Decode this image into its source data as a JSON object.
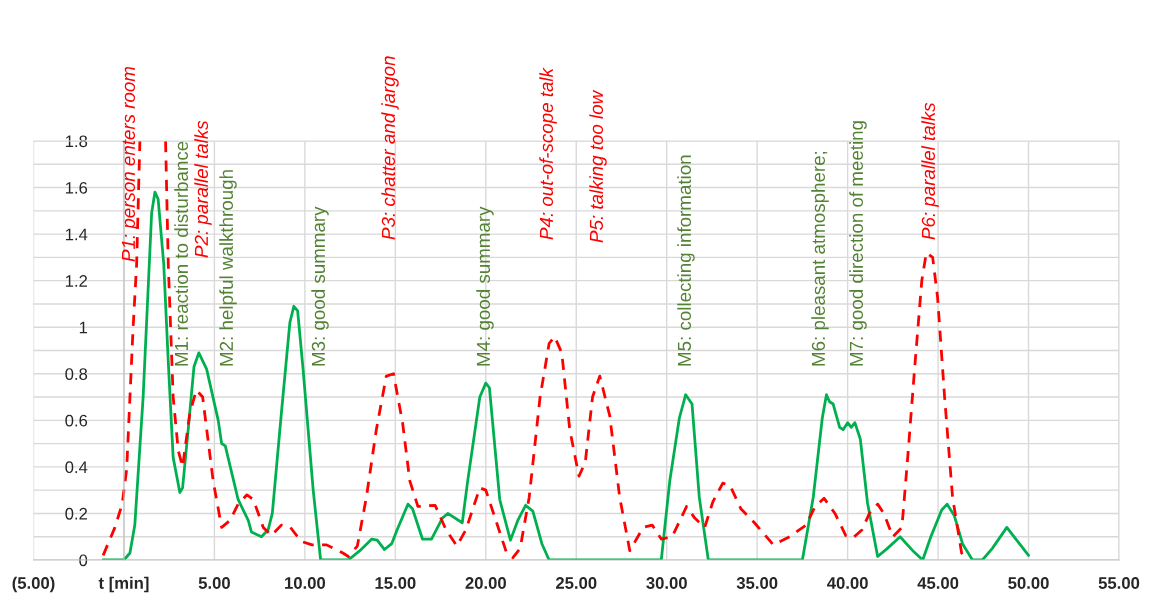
{
  "chart_data": {
    "type": "line",
    "xlim": [
      -5,
      55
    ],
    "xticks": [
      {
        "value": -5,
        "label": "(5.00)"
      },
      {
        "value": 0,
        "label": "t [min]"
      },
      {
        "value": 5,
        "label": "5.00"
      },
      {
        "value": 10,
        "label": "10.00"
      },
      {
        "value": 15,
        "label": "15.00"
      },
      {
        "value": 20,
        "label": "20.00"
      },
      {
        "value": 25,
        "label": "25.00"
      },
      {
        "value": 30,
        "label": "30.00"
      },
      {
        "value": 35,
        "label": "35.00"
      },
      {
        "value": 40,
        "label": "40.00"
      },
      {
        "value": 45,
        "label": "45.00"
      },
      {
        "value": 50,
        "label": "50.00"
      },
      {
        "value": 55,
        "label": "55.00"
      }
    ],
    "ylim": [
      0,
      1.8
    ],
    "yticks": [
      0,
      {
        "value": 0.1,
        "label": null
      },
      0.2,
      {
        "value": 0.3,
        "label": null
      },
      0.4,
      {
        "value": 0.5,
        "label": null
      },
      0.6,
      {
        "value": 0.7,
        "label": null
      },
      0.8,
      {
        "value": 0.9,
        "label": null
      },
      1,
      {
        "value": 1.1,
        "label": null
      },
      1.2,
      {
        "value": 1.3,
        "label": null
      },
      1.4,
      {
        "value": 1.5,
        "label": null
      },
      1.6,
      {
        "value": 1.7,
        "label": null
      },
      1.8
    ],
    "grid": true,
    "legend": false,
    "series": [
      {
        "color": "#00b050",
        "line_style": "solid",
        "x": [
          -1.15,
          0,
          0.33,
          0.6,
          1.06,
          1.53,
          1.71,
          1.89,
          2.2,
          2.45,
          2.72,
          3.09,
          3.24,
          3.55,
          3.87,
          4.14,
          4.57,
          5.21,
          5.4,
          5.6,
          6.31,
          6.87,
          7.05,
          7.6,
          7.97,
          8.2,
          8.7,
          9.17,
          9.39,
          9.6,
          9.9,
          10.46,
          10.87,
          12.4,
          13.04,
          13.7,
          14.0,
          14.4,
          14.8,
          15.1,
          15.7,
          15.95,
          16.5,
          17.0,
          17.6,
          17.9,
          18.7,
          19.0,
          19.67,
          20.0,
          20.2,
          20.77,
          21.36,
          21.77,
          22.2,
          22.6,
          23.1,
          23.5,
          29.7,
          30.17,
          30.7,
          31.05,
          31.4,
          31.8,
          32.3,
          37.5,
          38.1,
          38.6,
          38.83,
          39.0,
          39.2,
          39.56,
          39.75,
          40.0,
          40.2,
          40.4,
          40.7,
          41.1,
          41.66,
          42.2,
          42.9,
          43.6,
          44.15,
          44.6,
          45.2,
          45.5,
          45.9,
          46.35,
          46.9,
          47.45,
          48.0,
          48.8,
          49.3,
          50.0
        ],
        "values": [
          0,
          0,
          0.03,
          0.15,
          0.7,
          1.49,
          1.58,
          1.55,
          1.27,
          0.85,
          0.44,
          0.29,
          0.31,
          0.56,
          0.83,
          0.89,
          0.82,
          0.6,
          0.5,
          0.49,
          0.26,
          0.17,
          0.12,
          0.1,
          0.13,
          0.2,
          0.63,
          1.02,
          1.09,
          1.07,
          0.82,
          0.3,
          0,
          0,
          0.04,
          0.09,
          0.085,
          0.045,
          0.07,
          0.13,
          0.24,
          0.22,
          0.09,
          0.09,
          0.18,
          0.2,
          0.16,
          0.34,
          0.7,
          0.76,
          0.74,
          0.26,
          0.085,
          0.17,
          0.235,
          0.21,
          0.07,
          0,
          0,
          0.34,
          0.61,
          0.71,
          0.67,
          0.27,
          0,
          0,
          0.27,
          0.61,
          0.71,
          0.68,
          0.67,
          0.57,
          0.56,
          0.59,
          0.57,
          0.59,
          0.52,
          0.245,
          0.015,
          0.05,
          0.1,
          0.04,
          0,
          0.1,
          0.215,
          0.24,
          0.19,
          0.07,
          0,
          0,
          0.05,
          0.14,
          0.09,
          0.02
        ]
      },
      {
        "color": "#ff0000",
        "line_style": "dashed",
        "x": [
          -1.15,
          -0.5,
          -0.1,
          0.15,
          0.5,
          0.7,
          0.88,
          1.6,
          2.3,
          2.45,
          2.72,
          3.0,
          3.24,
          3.64,
          4.0,
          4.35,
          4.93,
          5.4,
          5.86,
          6.31,
          6.8,
          7.15,
          7.7,
          8.15,
          8.7,
          9.2,
          9.8,
          10.4,
          11.2,
          12.1,
          12.4,
          12.9,
          13.4,
          13.95,
          14.5,
          14.9,
          15.4,
          15.8,
          16.25,
          17.2,
          17.8,
          18.4,
          18.9,
          19.67,
          20.0,
          20.6,
          21.15,
          21.5,
          21.9,
          22.4,
          23.0,
          23.5,
          23.8,
          24.2,
          24.64,
          25.15,
          25.5,
          25.9,
          26.3,
          26.85,
          27.4,
          27.96,
          28.7,
          29.2,
          29.7,
          30.3,
          31.1,
          31.55,
          32.1,
          32.55,
          33.1,
          33.5,
          34.1,
          34.85,
          35.9,
          36.8,
          37.7,
          38.2,
          38.7,
          39.3,
          39.9,
          40.3,
          40.8,
          41.2,
          41.66,
          42.0,
          42.5,
          43.0,
          43.3,
          43.7,
          44.1,
          44.35,
          44.7,
          44.97,
          45.36,
          45.8,
          46.3,
          46.6
        ],
        "values": [
          0.02,
          0.14,
          0.24,
          0.39,
          0.99,
          1.27,
          1.8,
          null,
          1.8,
          1.27,
          0.7,
          0.47,
          0.4,
          0.63,
          0.73,
          0.7,
          0.34,
          0.14,
          0.17,
          0.24,
          0.28,
          0.26,
          0.14,
          0.105,
          0.15,
          0.14,
          0.08,
          0.065,
          0.065,
          0.03,
          0.015,
          0.06,
          0.27,
          0.56,
          0.79,
          0.8,
          0.59,
          0.34,
          0.23,
          0.235,
          0.13,
          0.06,
          0.13,
          0.31,
          0.3,
          0.16,
          0.03,
          0.01,
          0.05,
          0.27,
          0.7,
          0.93,
          0.96,
          0.89,
          0.56,
          0.36,
          0.42,
          0.7,
          0.79,
          0.62,
          0.27,
          0.04,
          0.14,
          0.15,
          0.09,
          0.1,
          0.23,
          0.18,
          0.14,
          0.25,
          0.33,
          0.32,
          0.22,
          0.16,
          0.065,
          0.1,
          0.15,
          0.23,
          0.265,
          0.2,
          0.105,
          0.095,
          0.13,
          0.2,
          0.24,
          0.2,
          0.1,
          0.14,
          0.42,
          0.82,
          1.2,
          1.32,
          1.3,
          1.13,
          0.7,
          0.27,
          0.03,
          0
        ]
      }
    ],
    "annotations": [
      "P1: person enters room",
      "M1: reaction to disturbance",
      "P2: parallel talks",
      "M2: helpful walkthrough",
      "M3: good summary",
      "P3: chatter and jargon",
      "M4: good summary",
      "P4: out-of-scope talk",
      "P5: talking too low",
      "M5: collecting information",
      "M6: pleasant atmosphere;",
      "M7: good direction of meeting",
      "P6: parallel talks"
    ]
  }
}
